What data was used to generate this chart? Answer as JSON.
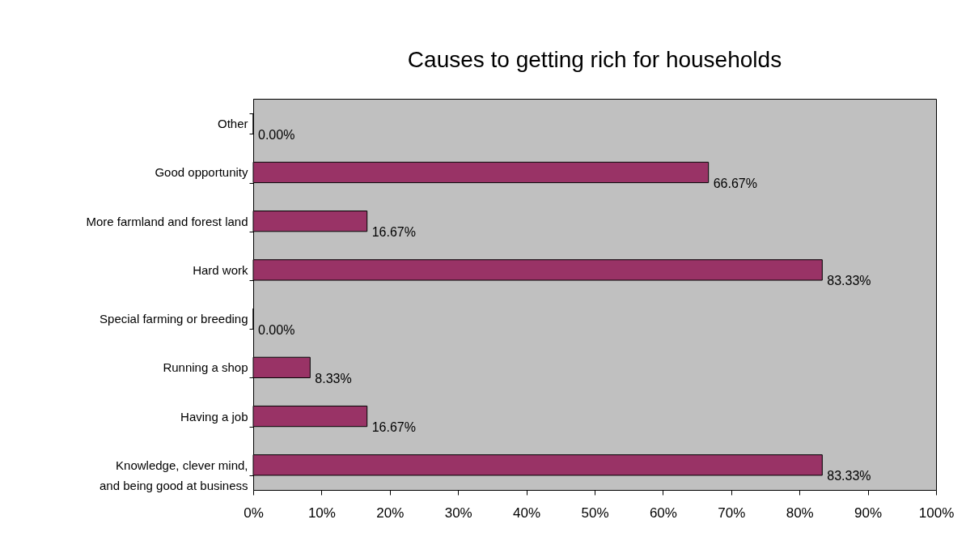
{
  "chart_data": {
    "type": "bar",
    "orientation": "horizontal",
    "title": "Causes to getting rich for households",
    "categories": [
      "Other",
      "Good opportunity",
      "More farmland and forest land",
      "Hard work",
      "Special farming or breeding",
      "Running a shop",
      "Having a job",
      "Knowledge, clever mind, and being good at business"
    ],
    "values": [
      0,
      66.67,
      16.67,
      83.33,
      0,
      8.33,
      16.67,
      83.33
    ],
    "value_labels": [
      "0.00%",
      "66.67%",
      "16.67%",
      "83.33%",
      "0.00%",
      "8.33%",
      "16.67%",
      "83.33%"
    ],
    "color": "#993366",
    "xlim": [
      0,
      100
    ],
    "xticks": [
      {
        "value": 0,
        "label": "0%"
      },
      {
        "value": 10,
        "label": "10%"
      },
      {
        "value": 20,
        "label": "20%"
      },
      {
        "value": 30,
        "label": "30%"
      },
      {
        "value": 40,
        "label": "40%"
      },
      {
        "value": 50,
        "label": "50%"
      },
      {
        "value": 60,
        "label": "60%"
      },
      {
        "value": 70,
        "label": "70%"
      },
      {
        "value": 80,
        "label": "80%"
      },
      {
        "value": 90,
        "label": "90%"
      },
      {
        "value": 100,
        "label": "100%"
      }
    ]
  }
}
